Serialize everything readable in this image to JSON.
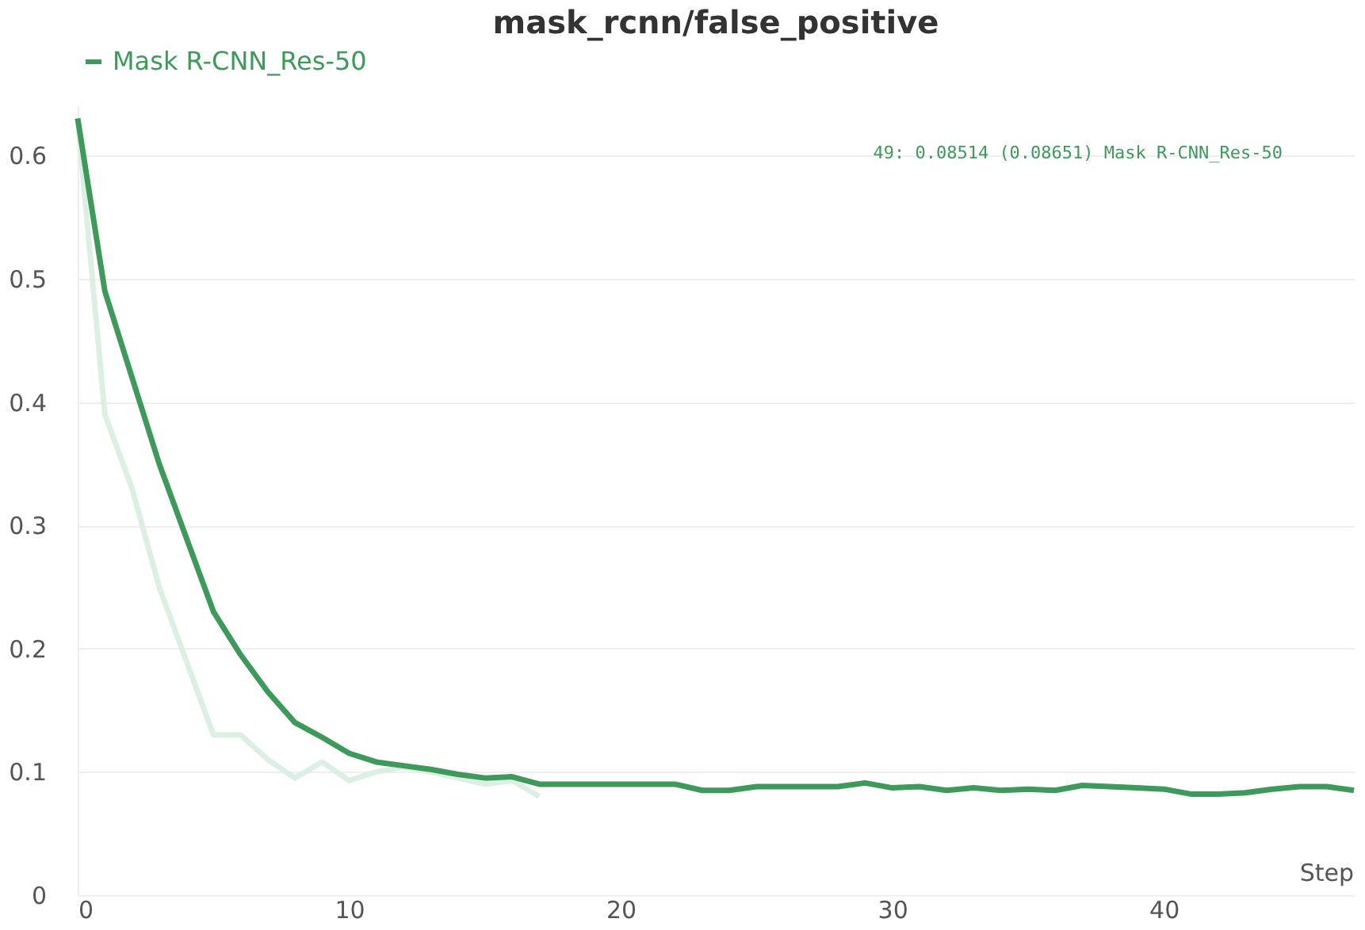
{
  "chart_data": {
    "type": "line",
    "title": "mask_rcnn/false_positive",
    "xlabel": "Step",
    "x": [
      0,
      1,
      2,
      3,
      4,
      5,
      6,
      7,
      8,
      9,
      10,
      11,
      12,
      13,
      14,
      15,
      16,
      17,
      18,
      19,
      20,
      21,
      22,
      23,
      24,
      25,
      26,
      27,
      28,
      29,
      30,
      31,
      32,
      33,
      34,
      35,
      36,
      37,
      38,
      39,
      40,
      41,
      42,
      43,
      44,
      45,
      46,
      47
    ],
    "series": [
      {
        "color": "#dcefe3",
        "values": [
          0.63,
          0.39,
          0.33,
          0.25,
          0.19,
          0.13,
          0.13,
          0.11,
          0.095,
          0.108,
          0.093,
          0.1,
          0.104,
          0.1,
          0.095,
          0.09,
          0.093,
          0.08,
          null,
          null,
          null,
          null,
          null,
          null,
          null,
          null,
          null,
          null,
          null,
          null,
          null,
          null,
          null,
          null,
          null,
          null,
          null,
          null,
          null,
          null,
          null,
          null,
          null,
          null,
          null,
          null,
          null,
          null
        ]
      },
      {
        "name": "Mask R-CNN_Res-50",
        "color": "#3d9a5a",
        "values": [
          0.63,
          0.49,
          0.42,
          0.35,
          0.29,
          0.23,
          0.195,
          0.165,
          0.14,
          0.128,
          0.115,
          0.108,
          0.105,
          0.102,
          0.098,
          0.095,
          0.096,
          0.09,
          0.09,
          0.09,
          0.09,
          0.09,
          0.09,
          0.085,
          0.085,
          0.088,
          0.088,
          0.088,
          0.088,
          0.091,
          0.087,
          0.088,
          0.085,
          0.087,
          0.085,
          0.086,
          0.085,
          0.089,
          0.088,
          0.087,
          0.086,
          0.082,
          0.082,
          0.083,
          0.086,
          0.088,
          0.088,
          0.085
        ]
      }
    ],
    "xlim": [
      0,
      47
    ],
    "ylim": [
      0,
      0.64
    ],
    "xticks": [
      0,
      10,
      20,
      30,
      40
    ],
    "yticks": [
      0,
      0.1,
      0.2,
      0.3,
      0.4,
      0.5,
      0.6
    ],
    "grid": "y",
    "legend": "top",
    "annotations": [
      "49: 0.08514 (0.08651) Mask R-CNN_Res-50"
    ]
  }
}
